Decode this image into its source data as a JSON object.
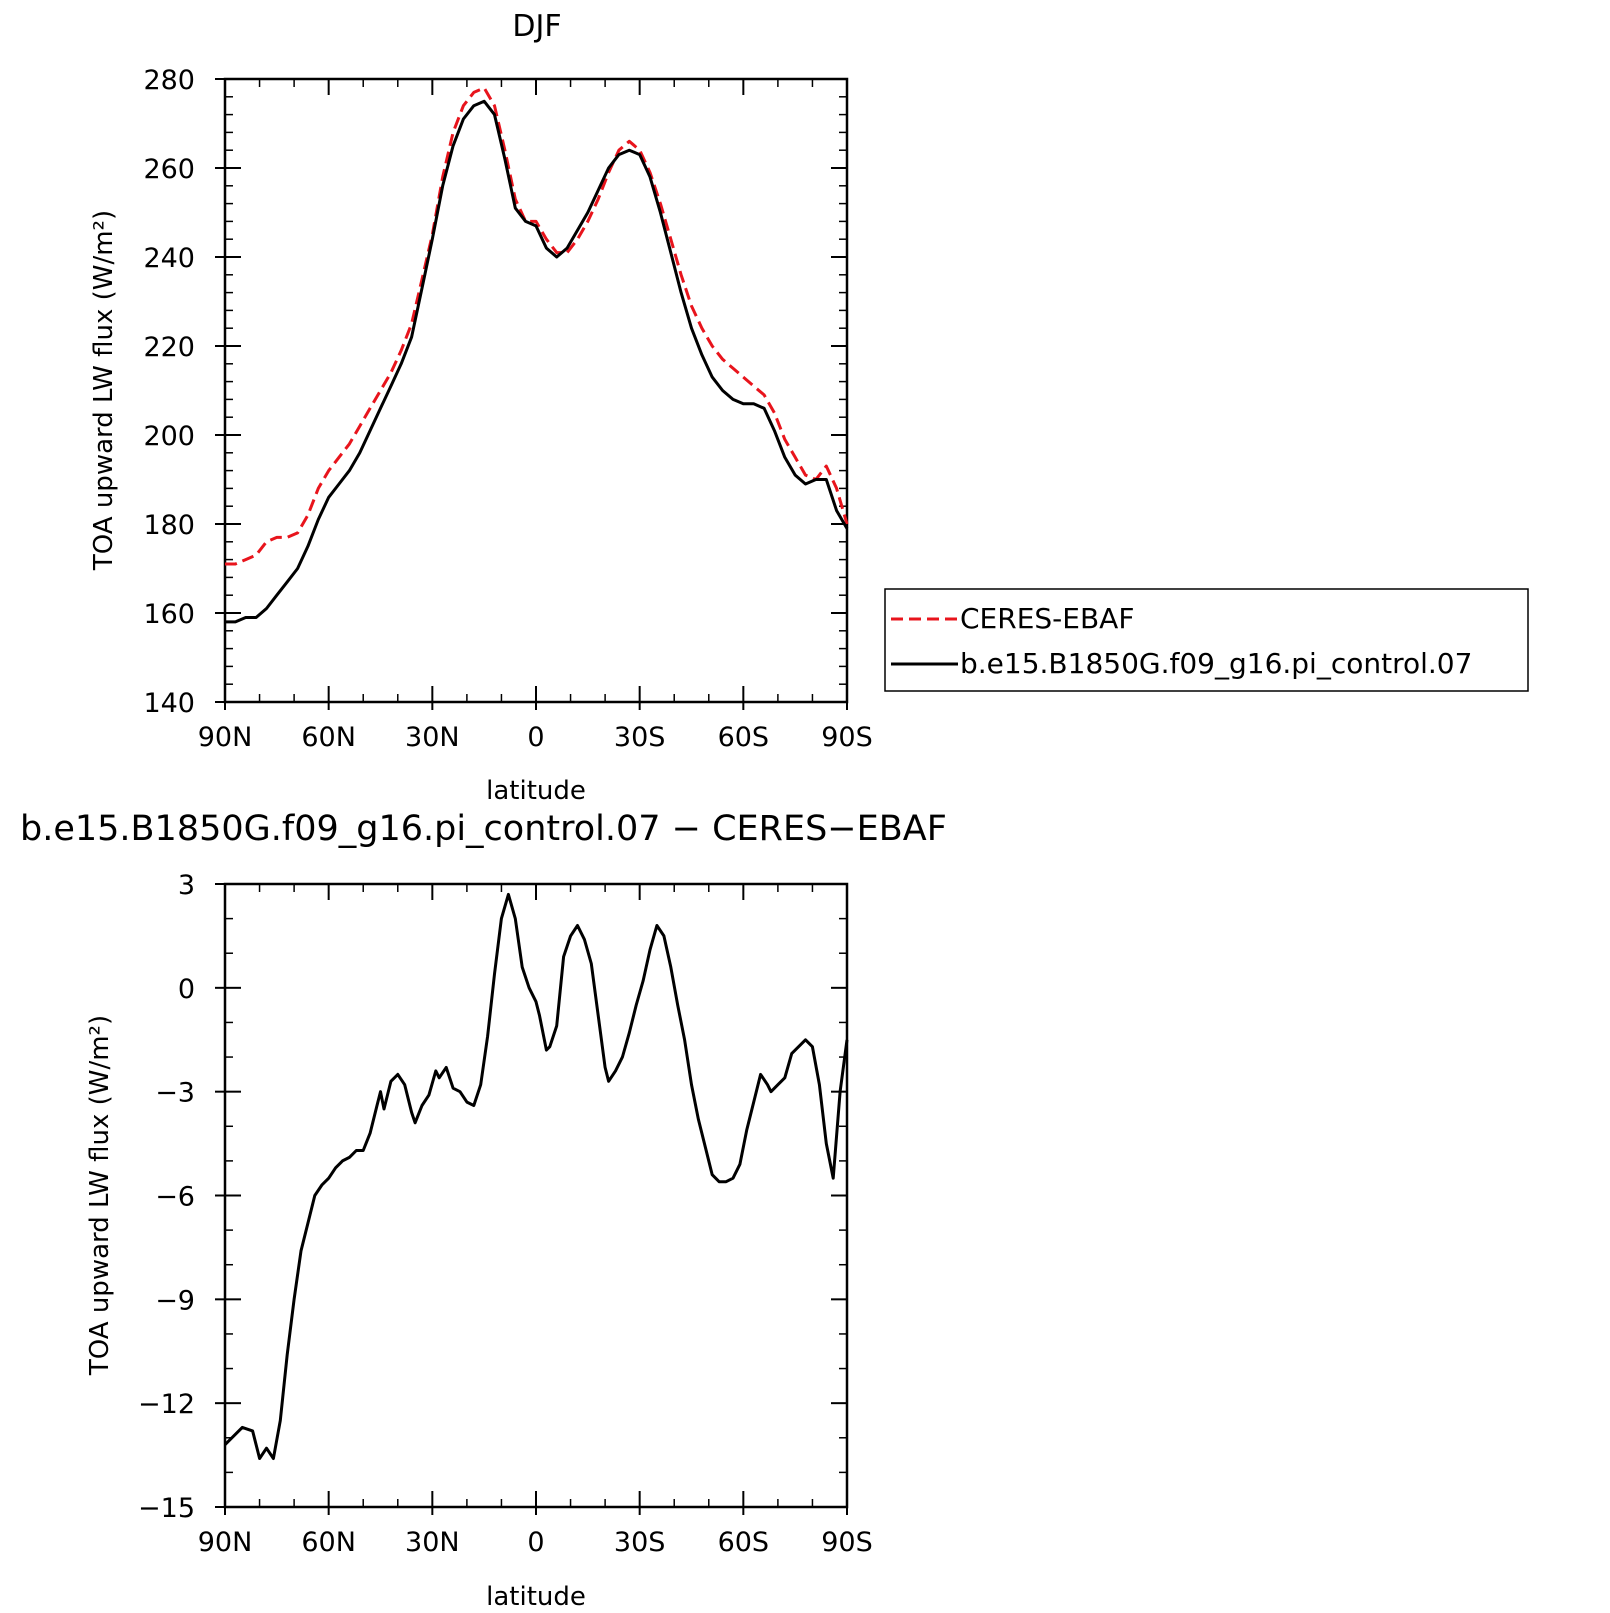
{
  "chart_data": [
    {
      "type": "line",
      "title": "DJF",
      "xlabel": "latitude",
      "ylabel": "TOA upward LW flux (W/m²)",
      "xlim": [
        -90,
        90
      ],
      "ylim": [
        140,
        280
      ],
      "x_ticks": [
        -90,
        -60,
        -30,
        0,
        30,
        60,
        90
      ],
      "x_tick_labels": [
        "90N",
        "60N",
        "30N",
        "0",
        "30S",
        "60S",
        "90S"
      ],
      "y_ticks": [
        140,
        160,
        180,
        200,
        220,
        240,
        260,
        280
      ],
      "y_tick_labels": [
        "140",
        "160",
        "180",
        "200",
        "220",
        "240",
        "260",
        "280"
      ],
      "legend_position": "right",
      "series": [
        {
          "name": "CERES-EBAF",
          "color": "#e8141c",
          "dash": "dashed",
          "points": [
            [
              -90,
              171
            ],
            [
              -87,
              171
            ],
            [
              -84,
              172
            ],
            [
              -81,
              173
            ],
            [
              -78,
              176
            ],
            [
              -75,
              177
            ],
            [
              -72,
              177
            ],
            [
              -69,
              178
            ],
            [
              -66,
              182
            ],
            [
              -63,
              188
            ],
            [
              -60,
              192
            ],
            [
              -57,
              195
            ],
            [
              -54,
              198
            ],
            [
              -51,
              202
            ],
            [
              -48,
              206
            ],
            [
              -45,
              210
            ],
            [
              -42,
              214
            ],
            [
              -39,
              219
            ],
            [
              -36,
              225
            ],
            [
              -33,
              235
            ],
            [
              -30,
              245
            ],
            [
              -27,
              258
            ],
            [
              -24,
              268
            ],
            [
              -21,
              274
            ],
            [
              -18,
              277
            ],
            [
              -15,
              278
            ],
            [
              -12,
              274
            ],
            [
              -9,
              264
            ],
            [
              -6,
              253
            ],
            [
              -3,
              248
            ],
            [
              0,
              248
            ],
            [
              3,
              244
            ],
            [
              6,
              241
            ],
            [
              9,
              241
            ],
            [
              12,
              244
            ],
            [
              15,
              248
            ],
            [
              18,
              253
            ],
            [
              21,
              259
            ],
            [
              24,
              264
            ],
            [
              27,
              266
            ],
            [
              30,
              264
            ],
            [
              33,
              259
            ],
            [
              36,
              252
            ],
            [
              39,
              244
            ],
            [
              42,
              236
            ],
            [
              45,
              229
            ],
            [
              48,
              224
            ],
            [
              51,
              220
            ],
            [
              54,
              217
            ],
            [
              57,
              215
            ],
            [
              60,
              213
            ],
            [
              63,
              211
            ],
            [
              66,
              209
            ],
            [
              69,
              205
            ],
            [
              72,
              199
            ],
            [
              75,
              195
            ],
            [
              78,
              191
            ],
            [
              81,
              190
            ],
            [
              84,
              193
            ],
            [
              87,
              188
            ],
            [
              90,
              180
            ]
          ]
        },
        {
          "name": "b.e15.B1850G.f09_g16.pi_control.07",
          "color": "#000000",
          "dash": "solid",
          "points": [
            [
              -90,
              158
            ],
            [
              -87,
              158
            ],
            [
              -84,
              159
            ],
            [
              -81,
              159
            ],
            [
              -78,
              161
            ],
            [
              -75,
              164
            ],
            [
              -72,
              167
            ],
            [
              -69,
              170
            ],
            [
              -66,
              175
            ],
            [
              -63,
              181
            ],
            [
              -60,
              186
            ],
            [
              -57,
              189
            ],
            [
              -54,
              192
            ],
            [
              -51,
              196
            ],
            [
              -48,
              201
            ],
            [
              -45,
              206
            ],
            [
              -42,
              211
            ],
            [
              -39,
              216
            ],
            [
              -36,
              222
            ],
            [
              -33,
              233
            ],
            [
              -30,
              244
            ],
            [
              -27,
              256
            ],
            [
              -24,
              265
            ],
            [
              -21,
              271
            ],
            [
              -18,
              274
            ],
            [
              -15,
              275
            ],
            [
              -12,
              272
            ],
            [
              -9,
              262
            ],
            [
              -6,
              251
            ],
            [
              -3,
              248
            ],
            [
              0,
              247
            ],
            [
              3,
              242
            ],
            [
              6,
              240
            ],
            [
              9,
              242
            ],
            [
              12,
              246
            ],
            [
              15,
              250
            ],
            [
              18,
              255
            ],
            [
              21,
              260
            ],
            [
              24,
              263
            ],
            [
              27,
              264
            ],
            [
              30,
              263
            ],
            [
              33,
              258
            ],
            [
              36,
              250
            ],
            [
              39,
              241
            ],
            [
              42,
              232
            ],
            [
              45,
              224
            ],
            [
              48,
              218
            ],
            [
              51,
              213
            ],
            [
              54,
              210
            ],
            [
              57,
              208
            ],
            [
              60,
              207
            ],
            [
              63,
              207
            ],
            [
              66,
              206
            ],
            [
              69,
              201
            ],
            [
              72,
              195
            ],
            [
              75,
              191
            ],
            [
              78,
              189
            ],
            [
              81,
              190
            ],
            [
              84,
              190
            ],
            [
              87,
              183
            ],
            [
              90,
              179
            ]
          ]
        }
      ]
    },
    {
      "type": "line",
      "title": "b.e15.B1850G.f09_g16.pi_control.07 − CERES−EBAF",
      "xlabel": "latitude",
      "ylabel": "TOA upward LW flux (W/m²)",
      "xlim": [
        -90,
        90
      ],
      "ylim": [
        -15,
        3
      ],
      "x_ticks": [
        -90,
        -60,
        -30,
        0,
        30,
        60,
        90
      ],
      "x_tick_labels": [
        "90N",
        "60N",
        "30N",
        "0",
        "30S",
        "60S",
        "90S"
      ],
      "y_ticks": [
        -15,
        -12,
        -9,
        -6,
        -3,
        0,
        3
      ],
      "y_tick_labels": [
        "−15",
        "−12",
        "−9",
        "−6",
        "−3",
        "0",
        "3"
      ],
      "series": [
        {
          "color": "#000000",
          "dash": "solid",
          "points": [
            [
              -90,
              -13.2
            ],
            [
              -87,
              -12.9
            ],
            [
              -85,
              -12.7
            ],
            [
              -82,
              -12.8
            ],
            [
              -80,
              -13.6
            ],
            [
              -78,
              -13.3
            ],
            [
              -76,
              -13.6
            ],
            [
              -74,
              -12.5
            ],
            [
              -72,
              -10.6
            ],
            [
              -70,
              -9
            ],
            [
              -68,
              -7.6
            ],
            [
              -66,
              -6.8
            ],
            [
              -64,
              -6
            ],
            [
              -62,
              -5.7
            ],
            [
              -60,
              -5.5
            ],
            [
              -58,
              -5.2
            ],
            [
              -56,
              -5
            ],
            [
              -54,
              -4.9
            ],
            [
              -52,
              -4.7
            ],
            [
              -50,
              -4.7
            ],
            [
              -48,
              -4.2
            ],
            [
              -46,
              -3.4
            ],
            [
              -45,
              -3
            ],
            [
              -44,
              -3.5
            ],
            [
              -42,
              -2.7
            ],
            [
              -40,
              -2.5
            ],
            [
              -38,
              -2.8
            ],
            [
              -36,
              -3.6
            ],
            [
              -35,
              -3.9
            ],
            [
              -33,
              -3.4
            ],
            [
              -31,
              -3.1
            ],
            [
              -29,
              -2.4
            ],
            [
              -28,
              -2.6
            ],
            [
              -26,
              -2.3
            ],
            [
              -24,
              -2.9
            ],
            [
              -22,
              -3
            ],
            [
              -20,
              -3.3
            ],
            [
              -18,
              -3.4
            ],
            [
              -16,
              -2.8
            ],
            [
              -14,
              -1.4
            ],
            [
              -12,
              0.4
            ],
            [
              -10,
              2
            ],
            [
              -8,
              2.7
            ],
            [
              -6,
              2
            ],
            [
              -4,
              0.6
            ],
            [
              -2,
              0
            ],
            [
              0,
              -0.4
            ],
            [
              1,
              -0.8
            ],
            [
              3,
              -1.8
            ],
            [
              4,
              -1.7
            ],
            [
              6,
              -1.1
            ],
            [
              8,
              0.9
            ],
            [
              10,
              1.5
            ],
            [
              12,
              1.8
            ],
            [
              14,
              1.4
            ],
            [
              16,
              0.7
            ],
            [
              18,
              -0.8
            ],
            [
              20,
              -2.3
            ],
            [
              21,
              -2.7
            ],
            [
              23,
              -2.4
            ],
            [
              25,
              -2
            ],
            [
              27,
              -1.3
            ],
            [
              29,
              -0.5
            ],
            [
              31,
              0.2
            ],
            [
              33,
              1.1
            ],
            [
              35,
              1.8
            ],
            [
              37,
              1.5
            ],
            [
              39,
              0.6
            ],
            [
              41,
              -0.5
            ],
            [
              43,
              -1.5
            ],
            [
              45,
              -2.8
            ],
            [
              47,
              -3.8
            ],
            [
              49,
              -4.6
            ],
            [
              51,
              -5.4
            ],
            [
              53,
              -5.6
            ],
            [
              55,
              -5.6
            ],
            [
              57,
              -5.5
            ],
            [
              59,
              -5.1
            ],
            [
              61,
              -4.1
            ],
            [
              63,
              -3.3
            ],
            [
              65,
              -2.5
            ],
            [
              67,
              -2.8
            ],
            [
              68,
              -3
            ],
            [
              70,
              -2.8
            ],
            [
              72,
              -2.6
            ],
            [
              74,
              -1.9
            ],
            [
              76,
              -1.7
            ],
            [
              78,
              -1.5
            ],
            [
              80,
              -1.7
            ],
            [
              82,
              -2.8
            ],
            [
              84,
              -4.5
            ],
            [
              86,
              -5.5
            ],
            [
              88,
              -3
            ],
            [
              90,
              -1.5
            ]
          ]
        }
      ]
    }
  ]
}
